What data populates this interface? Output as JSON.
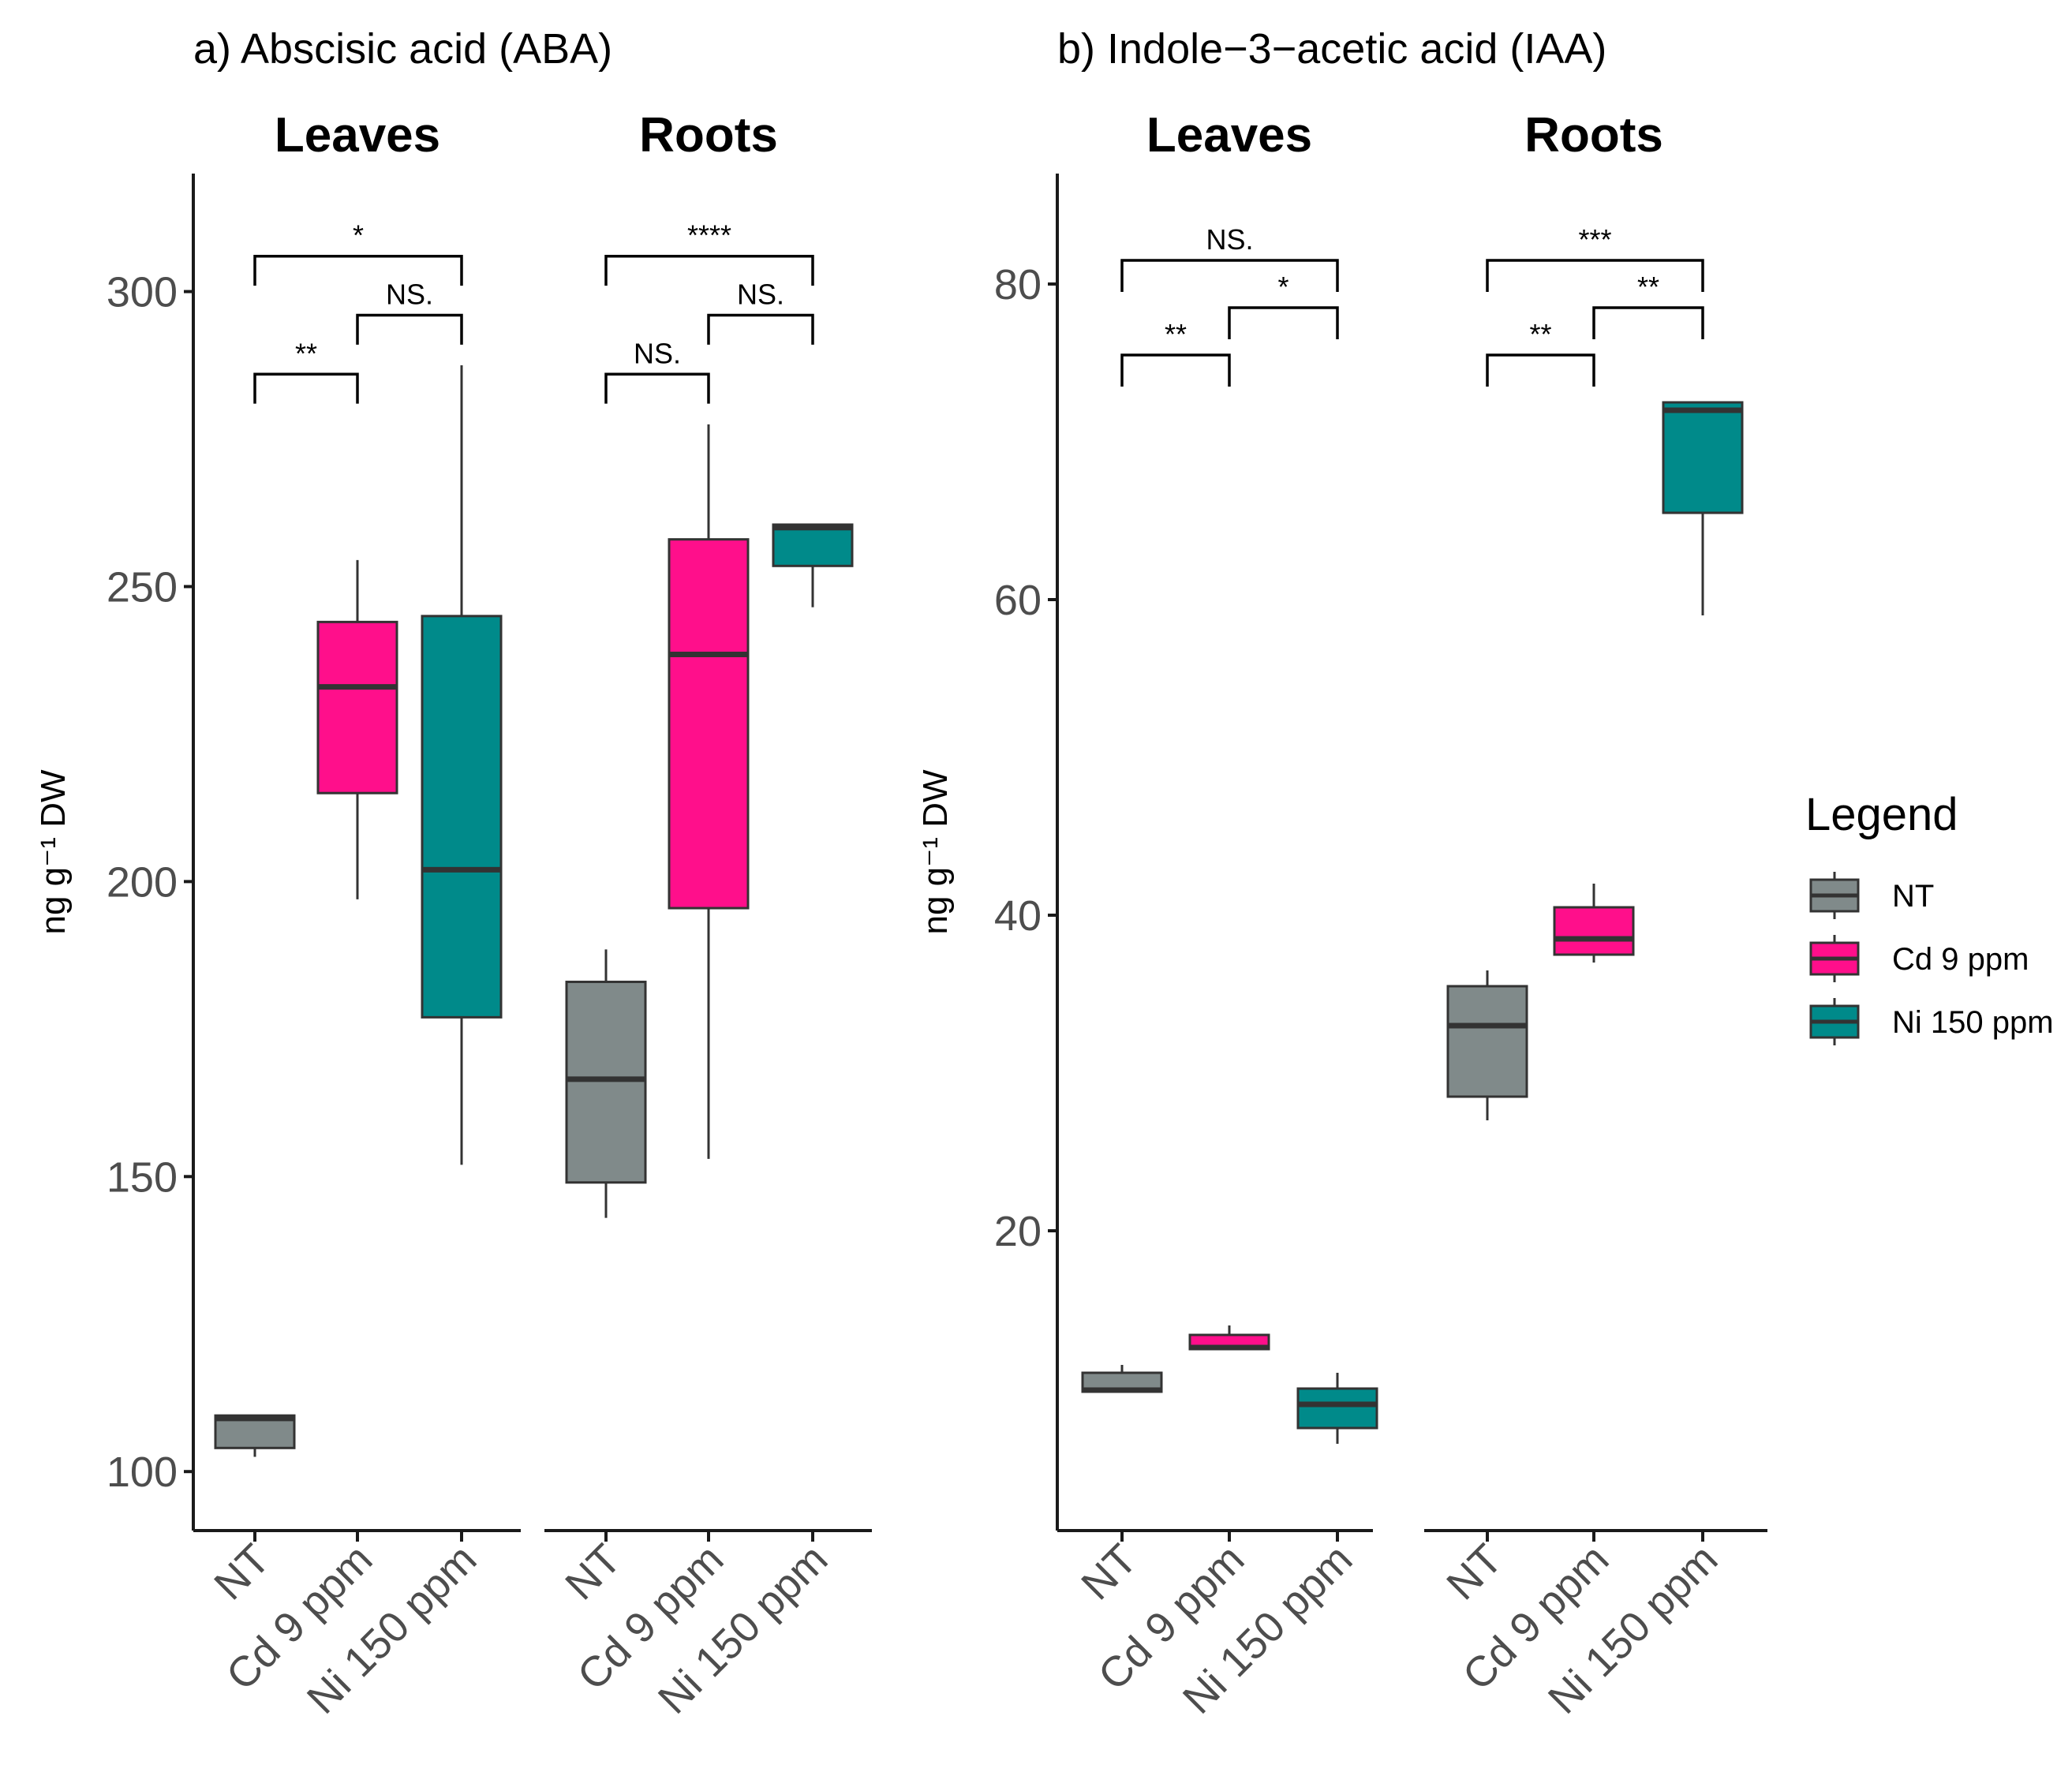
{
  "colors": {
    "NT": "#808a8a",
    "Cd 9 ppm": "#ff0f8b",
    "Ni 150 ppm": "#008a8a"
  },
  "legend": {
    "title": "Legend",
    "items": [
      "NT",
      "Cd 9 ppm",
      "Ni 150 ppm"
    ]
  },
  "chart_data": [
    {
      "type": "box",
      "title": "a) Abscisic acid (ABA)",
      "ylabel": "ng g⁻¹ DW",
      "ylim": [
        90,
        320
      ],
      "yticks": [
        100,
        150,
        200,
        250,
        300
      ],
      "categories": [
        "NT",
        "Cd 9 ppm",
        "Ni 150 ppm"
      ],
      "facets": [
        {
          "name": "Leaves",
          "boxes": [
            {
              "group": "NT",
              "min": 102.5,
              "q1": 104,
              "median": 109,
              "q3": 109.5,
              "max": 109.5
            },
            {
              "group": "Cd 9 ppm",
              "min": 197,
              "q1": 215,
              "median": 233,
              "q3": 244,
              "max": 254.5
            },
            {
              "group": "Ni 150 ppm",
              "min": 152,
              "q1": 177,
              "median": 202,
              "q3": 245,
              "max": 287.5
            }
          ],
          "comparisons": [
            {
              "from": 0,
              "to": 2,
              "label": "*",
              "y": 306,
              "tick_end": 301
            },
            {
              "from": 0,
              "to": 1,
              "label": "**",
              "y": 286,
              "tick_end": 281
            },
            {
              "from": 1,
              "to": 2,
              "label": "NS.",
              "y": 296,
              "tick_end": 291
            }
          ]
        },
        {
          "name": "Roots",
          "boxes": [
            {
              "group": "NT",
              "min": 143,
              "q1": 149,
              "median": 166.5,
              "q3": 183,
              "max": 188.5
            },
            {
              "group": "Cd 9 ppm",
              "min": 153,
              "q1": 195.5,
              "median": 238.5,
              "q3": 258,
              "max": 277.5
            },
            {
              "group": "Ni 150 ppm",
              "min": 246.5,
              "q1": 253.5,
              "median": 260,
              "q3": 260.5,
              "max": 260.5
            }
          ],
          "comparisons": [
            {
              "from": 0,
              "to": 2,
              "label": "****",
              "y": 306,
              "tick_end": 301
            },
            {
              "from": 0,
              "to": 1,
              "label": "NS.",
              "y": 286,
              "tick_end": 281
            },
            {
              "from": 1,
              "to": 2,
              "label": "NS.",
              "y": 296,
              "tick_end": 291
            }
          ]
        }
      ]
    },
    {
      "type": "box",
      "title": "b) Indole−3−acetic acid (IAA)",
      "ylabel": "ng g⁻¹ DW",
      "ylim": [
        1,
        87
      ],
      "yticks": [
        20,
        40,
        60,
        80
      ],
      "categories": [
        "NT",
        "Cd 9 ppm",
        "Ni 150 ppm"
      ],
      "facets": [
        {
          "name": "Leaves",
          "boxes": [
            {
              "group": "NT",
              "min": 9.8,
              "q1": 9.8,
              "median": 9.9,
              "q3": 11,
              "max": 11.5
            },
            {
              "group": "Cd 9 ppm",
              "min": 12.5,
              "q1": 12.5,
              "median": 12.6,
              "q3": 13.4,
              "max": 14
            },
            {
              "group": "Ni 150 ppm",
              "min": 6.5,
              "q1": 7.5,
              "median": 9,
              "q3": 10,
              "max": 11
            }
          ],
          "comparisons": [
            {
              "from": 0,
              "to": 2,
              "label": "NS.",
              "y": 81.5,
              "tick_end": 79.5
            },
            {
              "from": 0,
              "to": 1,
              "label": "**",
              "y": 75.5,
              "tick_end": 73.5
            },
            {
              "from": 1,
              "to": 2,
              "label": "*",
              "y": 78.5,
              "tick_end": 76.5
            }
          ]
        },
        {
          "name": "Roots",
          "boxes": [
            {
              "group": "NT",
              "min": 27,
              "q1": 28.5,
              "median": 33,
              "q3": 35.5,
              "max": 36.5
            },
            {
              "group": "Cd 9 ppm",
              "min": 37,
              "q1": 37.5,
              "median": 38.5,
              "q3": 40.5,
              "max": 42
            },
            {
              "group": "Ni 150 ppm",
              "min": 59,
              "q1": 65.5,
              "median": 72,
              "q3": 72.5,
              "max": 72.5
            }
          ],
          "comparisons": [
            {
              "from": 0,
              "to": 2,
              "label": "***",
              "y": 81.5,
              "tick_end": 79.5
            },
            {
              "from": 0,
              "to": 1,
              "label": "**",
              "y": 75.5,
              "tick_end": 73.5
            },
            {
              "from": 1,
              "to": 2,
              "label": "**",
              "y": 78.5,
              "tick_end": 76.5
            }
          ]
        }
      ]
    }
  ]
}
